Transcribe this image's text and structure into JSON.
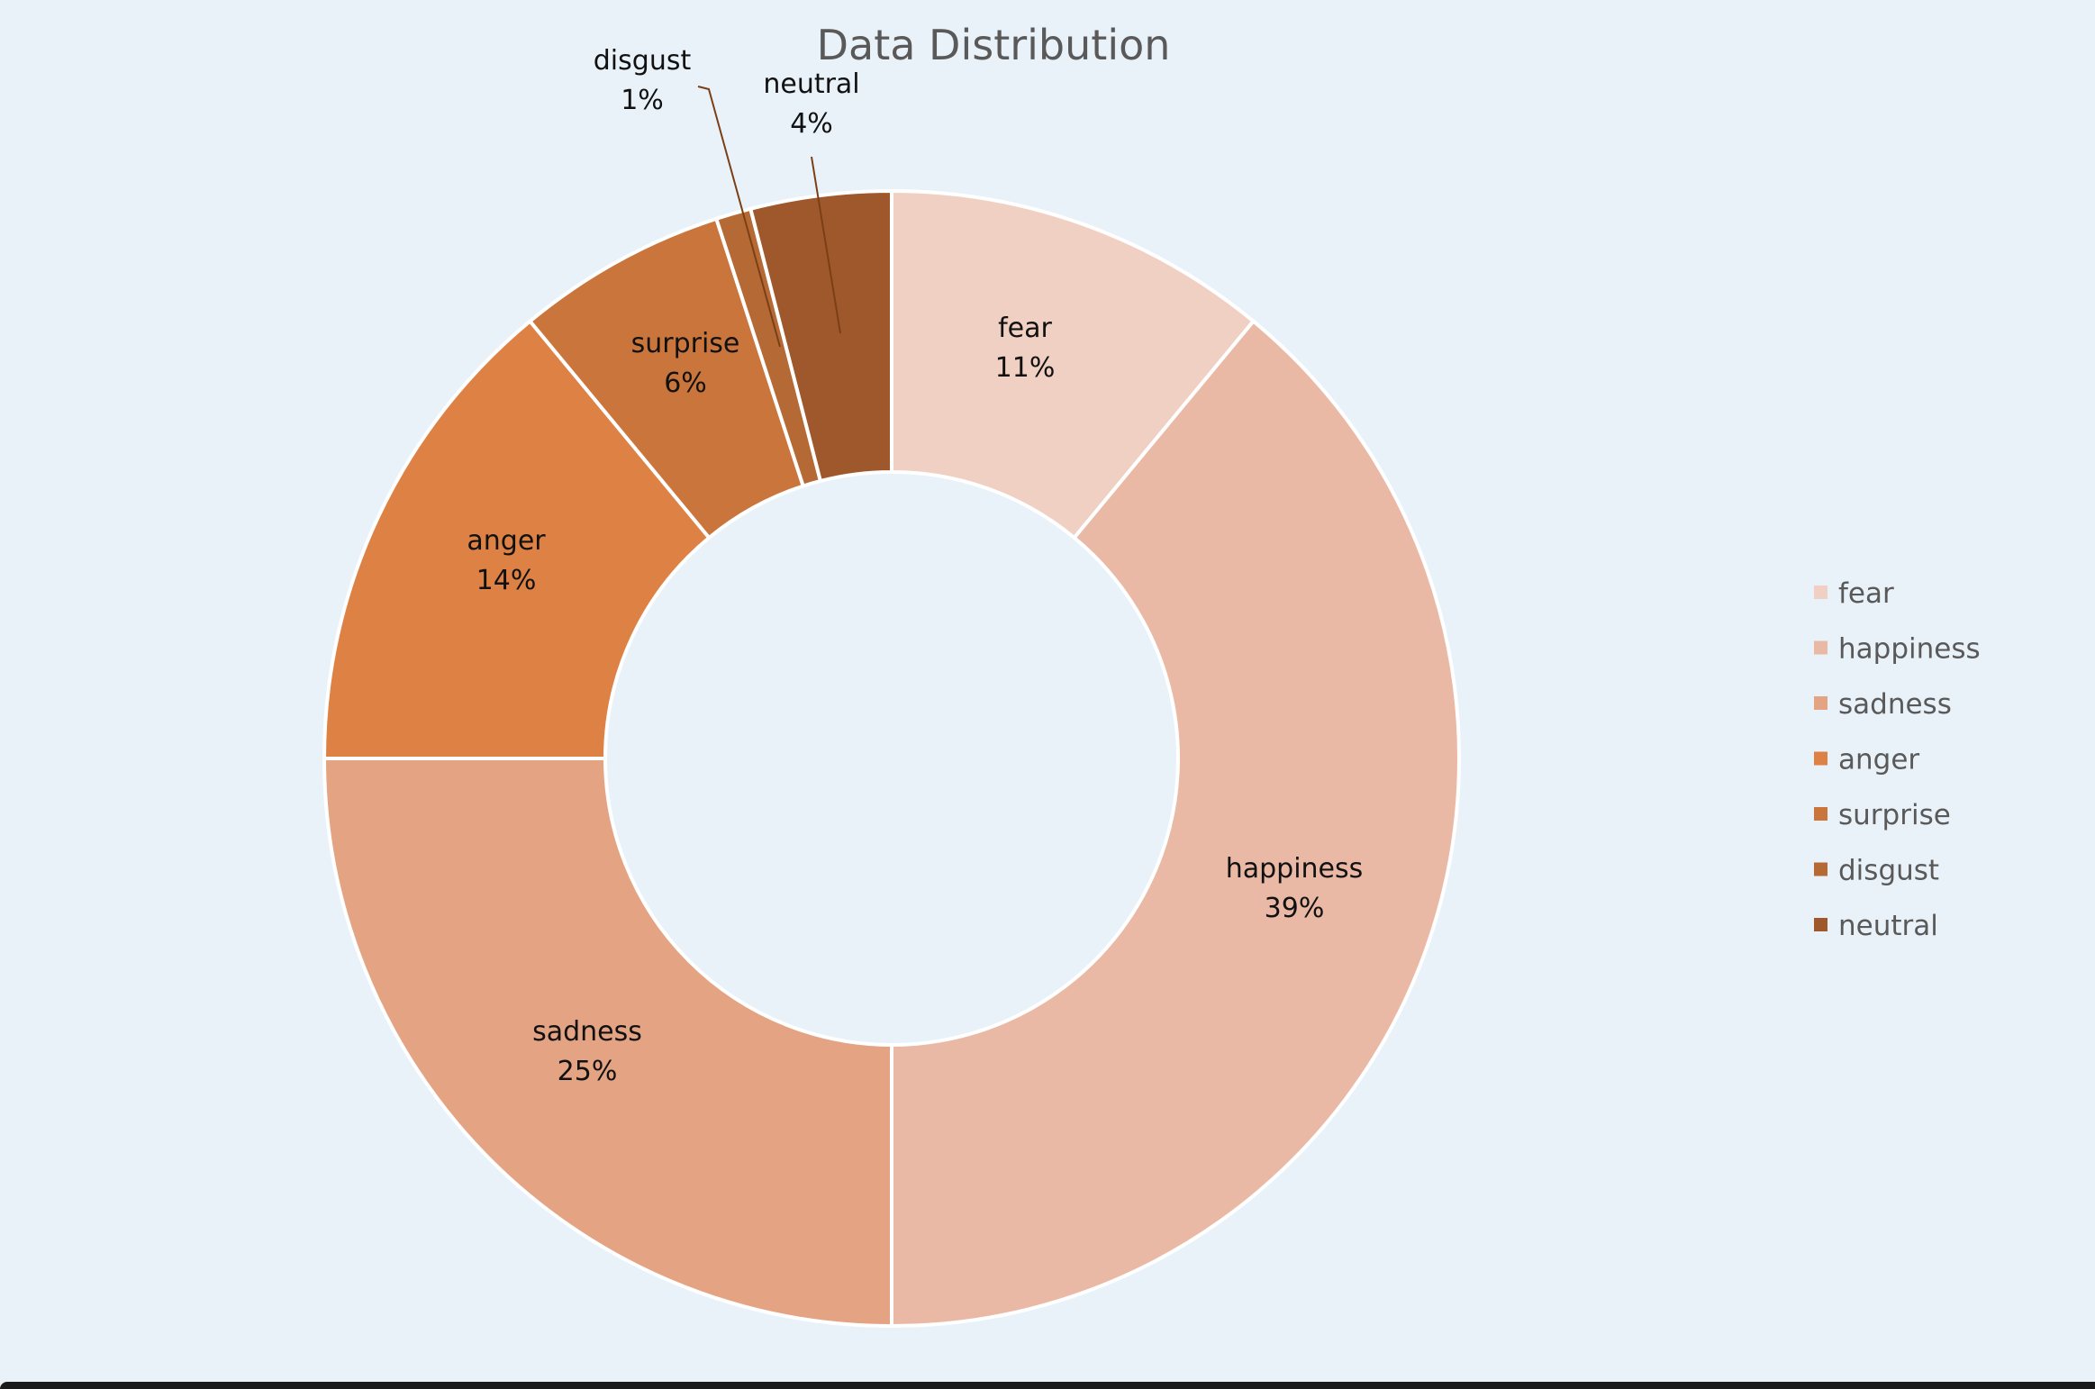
{
  "chart_data": {
    "type": "pie",
    "variant": "doughnut",
    "title": "Data Distribution",
    "categories": [
      "fear",
      "happiness",
      "sadness",
      "anger",
      "surprise",
      "disgust",
      "neutral"
    ],
    "values": [
      11,
      39,
      25,
      14,
      6,
      1,
      4
    ],
    "labels": [
      "11%",
      "39%",
      "25%",
      "14%",
      "6%",
      "1%",
      "4%"
    ],
    "colors": [
      "#f0d0c2",
      "#eab9a5",
      "#e4a382",
      "#dd8244",
      "#ca753b",
      "#b56a35",
      "#9e582c"
    ],
    "legend": {
      "position": "right",
      "entries": [
        "fear",
        "happiness",
        "sadness",
        "anger",
        "surprise",
        "disgust",
        "neutral"
      ]
    }
  }
}
